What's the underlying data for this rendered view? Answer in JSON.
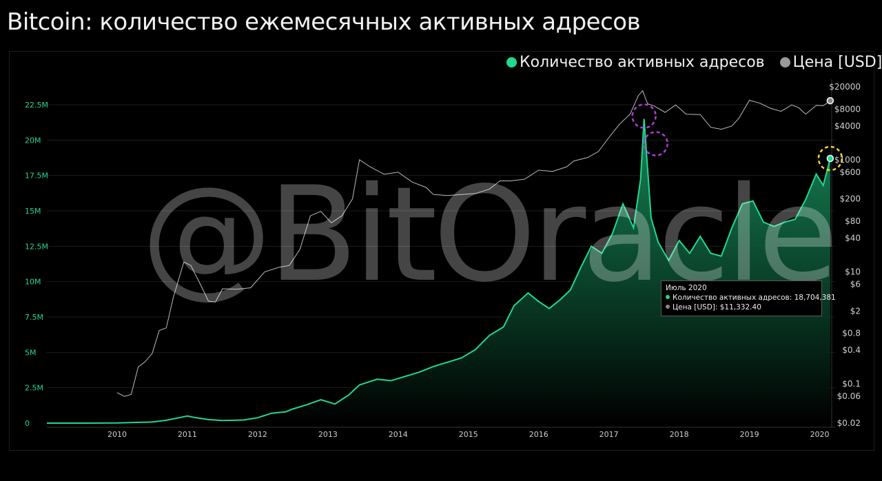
{
  "title": "Bitcoin: количество ежемесячных активных адресов",
  "watermark": "@BitOracle",
  "legend": [
    {
      "label": "Количество активных адресов",
      "color": "#1fd991"
    },
    {
      "label": "Цена [USD]",
      "color": "#9a9a9a"
    }
  ],
  "tooltip": {
    "header": "Июль 2020",
    "line1": "Количество активных адресов: 18,704,381",
    "line2": "Цена [USD]: $11,332.40"
  },
  "chart_data": {
    "type": "area",
    "x_ticks": [
      "2010",
      "2011",
      "2012",
      "2013",
      "2014",
      "2015",
      "2016",
      "2017",
      "2018",
      "2019",
      "2020"
    ],
    "y_left_ticks": [
      "0",
      "2.5M",
      "5M",
      "7.5M",
      "10M",
      "12.5M",
      "15M",
      "17.5M",
      "20M",
      "22.5M"
    ],
    "y_left_range": [
      0,
      22500000
    ],
    "y_right_ticks": [
      "$20000",
      "$8000",
      "$4000",
      "$1000",
      "$600",
      "$200",
      "$80",
      "$40",
      "$10",
      "$6",
      "$2",
      "$0.8",
      "$0.4",
      "$0.1",
      "$0.06",
      "$0.02"
    ],
    "y_right_scale": "log",
    "y_right_range": [
      0.02,
      20000
    ],
    "series": [
      {
        "name": "Количество активных адресов",
        "axis": "left",
        "color": "#1fd991",
        "points": [
          [
            2009.5,
            0
          ],
          [
            2010.0,
            2000
          ],
          [
            2010.5,
            10000
          ],
          [
            2011.0,
            80000
          ],
          [
            2011.2,
            200000
          ],
          [
            2011.4,
            400000
          ],
          [
            2011.5,
            500000
          ],
          [
            2011.6,
            400000
          ],
          [
            2011.8,
            250000
          ],
          [
            2012.0,
            180000
          ],
          [
            2012.3,
            220000
          ],
          [
            2012.5,
            380000
          ],
          [
            2012.7,
            700000
          ],
          [
            2012.9,
            800000
          ],
          [
            2013.0,
            1000000
          ],
          [
            2013.2,
            1300000
          ],
          [
            2013.4,
            1650000
          ],
          [
            2013.6,
            1350000
          ],
          [
            2013.8,
            2000000
          ],
          [
            2013.95,
            2700000
          ],
          [
            2014.2,
            3100000
          ],
          [
            2014.4,
            3000000
          ],
          [
            2014.6,
            3300000
          ],
          [
            2014.8,
            3600000
          ],
          [
            2015.0,
            4000000
          ],
          [
            2015.2,
            4300000
          ],
          [
            2015.4,
            4600000
          ],
          [
            2015.6,
            5200000
          ],
          [
            2015.8,
            6200000
          ],
          [
            2016.0,
            6800000
          ],
          [
            2016.15,
            8300000
          ],
          [
            2016.35,
            9200000
          ],
          [
            2016.5,
            8600000
          ],
          [
            2016.65,
            8100000
          ],
          [
            2016.8,
            8700000
          ],
          [
            2016.95,
            9400000
          ],
          [
            2017.1,
            11000000
          ],
          [
            2017.25,
            12500000
          ],
          [
            2017.4,
            12000000
          ],
          [
            2017.55,
            13400000
          ],
          [
            2017.7,
            15500000
          ],
          [
            2017.85,
            13800000
          ],
          [
            2017.95,
            17200000
          ],
          [
            2018.0,
            21500000
          ],
          [
            2018.1,
            14500000
          ],
          [
            2018.2,
            12800000
          ],
          [
            2018.35,
            11500000
          ],
          [
            2018.5,
            12900000
          ],
          [
            2018.65,
            12000000
          ],
          [
            2018.8,
            13200000
          ],
          [
            2018.95,
            12000000
          ],
          [
            2019.1,
            11800000
          ],
          [
            2019.25,
            13800000
          ],
          [
            2019.4,
            15500000
          ],
          [
            2019.55,
            15700000
          ],
          [
            2019.7,
            14200000
          ],
          [
            2019.85,
            13900000
          ],
          [
            2020.0,
            14200000
          ],
          [
            2020.15,
            14400000
          ],
          [
            2020.3,
            15800000
          ],
          [
            2020.45,
            17600000
          ],
          [
            2020.55,
            16800000
          ],
          [
            2020.65,
            18704381
          ]
        ]
      },
      {
        "name": "Цена [USD]",
        "axis": "right",
        "color": "#bdbdbd",
        "points": [
          [
            2010.5,
            0.07
          ],
          [
            2010.6,
            0.06
          ],
          [
            2010.7,
            0.065
          ],
          [
            2010.8,
            0.2
          ],
          [
            2010.9,
            0.25
          ],
          [
            2011.0,
            0.35
          ],
          [
            2011.1,
            0.9
          ],
          [
            2011.2,
            1.0
          ],
          [
            2011.3,
            3.5
          ],
          [
            2011.45,
            15
          ],
          [
            2011.55,
            13
          ],
          [
            2011.7,
            5.5
          ],
          [
            2011.8,
            3
          ],
          [
            2011.9,
            2.9
          ],
          [
            2012.0,
            5
          ],
          [
            2012.2,
            4.9
          ],
          [
            2012.4,
            5.2
          ],
          [
            2012.6,
            10
          ],
          [
            2012.8,
            12
          ],
          [
            2012.95,
            13
          ],
          [
            2013.1,
            25
          ],
          [
            2013.25,
            100
          ],
          [
            2013.4,
            120
          ],
          [
            2013.55,
            75
          ],
          [
            2013.7,
            100
          ],
          [
            2013.85,
            200
          ],
          [
            2013.95,
            1000
          ],
          [
            2014.1,
            750
          ],
          [
            2014.3,
            550
          ],
          [
            2014.5,
            600
          ],
          [
            2014.7,
            400
          ],
          [
            2014.9,
            320
          ],
          [
            2015.0,
            240
          ],
          [
            2015.2,
            230
          ],
          [
            2015.4,
            240
          ],
          [
            2015.6,
            250
          ],
          [
            2015.8,
            300
          ],
          [
            2015.95,
            420
          ],
          [
            2016.1,
            420
          ],
          [
            2016.3,
            450
          ],
          [
            2016.5,
            650
          ],
          [
            2016.7,
            620
          ],
          [
            2016.9,
            750
          ],
          [
            2017.0,
            950
          ],
          [
            2017.2,
            1100
          ],
          [
            2017.35,
            1400
          ],
          [
            2017.5,
            2500
          ],
          [
            2017.65,
            4300
          ],
          [
            2017.8,
            6500
          ],
          [
            2017.92,
            14000
          ],
          [
            2017.98,
            17000
          ],
          [
            2018.05,
            10000
          ],
          [
            2018.15,
            9000
          ],
          [
            2018.3,
            7000
          ],
          [
            2018.45,
            9500
          ],
          [
            2018.6,
            6500
          ],
          [
            2018.8,
            6400
          ],
          [
            2018.95,
            3800
          ],
          [
            2019.1,
            3500
          ],
          [
            2019.25,
            4000
          ],
          [
            2019.35,
            5500
          ],
          [
            2019.5,
            11500
          ],
          [
            2019.65,
            10200
          ],
          [
            2019.8,
            8300
          ],
          [
            2019.95,
            7300
          ],
          [
            2020.1,
            9500
          ],
          [
            2020.2,
            8500
          ],
          [
            2020.3,
            6500
          ],
          [
            2020.45,
            9300
          ],
          [
            2020.55,
            9200
          ],
          [
            2020.65,
            11332.4
          ]
        ]
      }
    ]
  }
}
